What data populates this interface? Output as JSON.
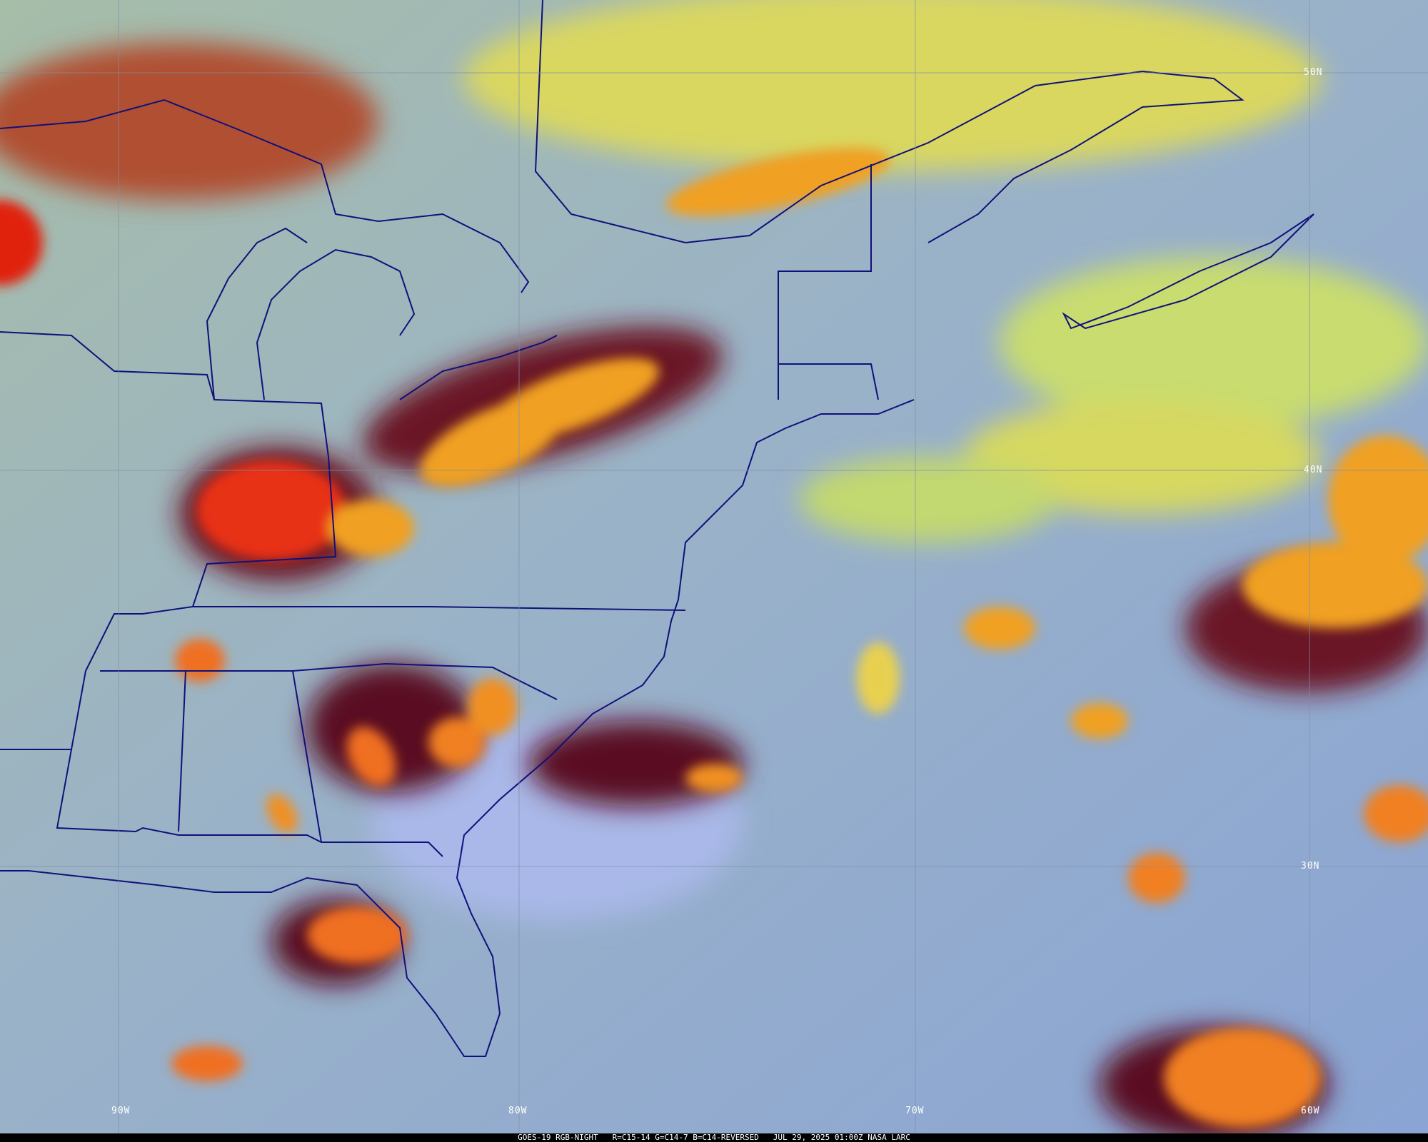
{
  "caption": "GOES-19 RGB-NIGHT   R=C15-14 G=C14-7 B=C14-REVERSED   JUL 29, 2025 01:00Z NASA LARC",
  "grid_labels": {
    "lat_50": "50N",
    "lat_40": "40N",
    "lat_30": "30N",
    "lon_90": "90W",
    "lon_80": "80W",
    "lon_70": "70W",
    "lon_60": "60W"
  },
  "colors": {
    "clear_ocean": "#8ea8d2",
    "land": "#9bb5b0",
    "high_cloud_red": "#e02010",
    "cloud_orange": "#f0a020",
    "cloud_maroon": "#5a1020",
    "low_cloud_yellow": "#d8d850",
    "borders": "#10107a"
  }
}
